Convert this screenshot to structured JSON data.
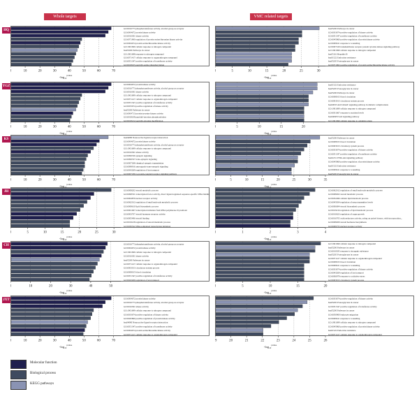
{
  "headers": {
    "left": "Whole targets",
    "right": "VMC related targets"
  },
  "colors": {
    "mf": "#1f1f4e",
    "bp": "#3f4a5f",
    "kegg": "#8a93b3",
    "tag": "#b0174f",
    "header": "#c8324a"
  },
  "legend": [
    {
      "label": "Molecular function",
      "color": "#1f1f4e"
    },
    {
      "label": "Biological process",
      "color": "#3f4a5f"
    },
    {
      "label": "KEGG pathways",
      "color": "#8a93b3"
    }
  ],
  "chart_data": [
    {
      "type": "bar",
      "herb": "HQ",
      "side": "Whole targets",
      "xlabel": "-log10 pvalue",
      "xlim": [
        0,
        75
      ],
      "xticks": [
        0,
        10,
        20,
        30,
        40,
        50,
        60,
        70
      ],
      "categories": [
        "GO:0016773 phosphotransferase activity, alcohol group as acceptor",
        "GO:0004672 protein kinase activity",
        "GO:0016301 kinase activity",
        "GO:0071900 regulation of protein serine/threonine kinase activity",
        "GO:0004674 protein serine/threonine kinase activity",
        "GO:1901699 cellular response to nitrogen compound",
        "hsa05200 Pathways in cancer",
        "GO:1901698 response to nitrogen compound",
        "GO:0071417 cellular response to organonitrogen compound",
        "GO:0051347 positive regulation of transferase activity",
        "GO:0018105 peptidyl-serine phosphorylation"
      ],
      "groups": [
        "mf",
        "mf",
        "mf",
        "bp",
        "mf",
        "bp",
        "kegg",
        "bp",
        "bp",
        "bp",
        "bp"
      ],
      "values": [
        68,
        66,
        64,
        48,
        47,
        46,
        45,
        44,
        43,
        42,
        41
      ]
    },
    {
      "type": "bar",
      "herb": "HQ",
      "side": "VMC related targets",
      "xlabel": "-log10 pvalue",
      "xlim": [
        0,
        32
      ],
      "xticks": [
        0,
        5,
        10,
        15,
        20,
        25,
        30
      ],
      "categories": [
        "hsa05200 Pathways in cancer",
        "GO:0033674 positive regulation of kinase activity",
        "GO:0051347 positive regulation of transferase activity",
        "GO:0045860 positive regulation of protein kinase activity",
        "GO:0009611 response to wounding",
        "GO:0007169 transmembrane receptor protein tyrosine kinase signaling pathway",
        "GO:1901699 cellular response to nitrogen compound",
        "hsa05161 Hepatitis B",
        "hsa01522 Endocrine resistance",
        "hsa05205 Proteoglycans in cancer",
        "GO:0071902 positive regulation of protein serine/threonine kinase activity"
      ],
      "groups": [
        "kegg",
        "bp",
        "bp",
        "bp",
        "bp",
        "bp",
        "bp",
        "kegg",
        "kegg",
        "kegg",
        "bp"
      ],
      "values": [
        30,
        25,
        25,
        24,
        24,
        23,
        23,
        22,
        22,
        22,
        21
      ]
    },
    {
      "type": "bar",
      "herb": "YGZ",
      "side": "Whole targets",
      "xlabel": "-log10 pvalue",
      "xlim": [
        0,
        75
      ],
      "xticks": [
        0,
        10,
        20,
        30,
        40,
        50,
        60,
        70
      ],
      "categories": [
        "GO:0004672 protein kinase activity",
        "GO:0016773 phosphotransferase activity, alcohol group as acceptor",
        "GO:0016301 kinase activity",
        "GO:1901699 cellular response to nitrogen compound",
        "GO:0071417 cellular response to organonitrogen compound",
        "GO:0051347 positive regulation of transferase activity",
        "GO:0033674 positive regulation of kinase activity",
        "hsa05200 Pathways in cancer",
        "GO:0004713 protein tyrosine kinase activity",
        "GO:0018108 peptidyl-tyrosine phosphorylation",
        "GO:0018212 peptidyl-tyrosine modification"
      ],
      "groups": [
        "mf",
        "mf",
        "mf",
        "bp",
        "bp",
        "bp",
        "bp",
        "kegg",
        "mf",
        "bp",
        "bp"
      ],
      "values": [
        68,
        66,
        64,
        48,
        47,
        46,
        45,
        44,
        42,
        41,
        40
      ]
    },
    {
      "type": "bar",
      "herb": "YGZ",
      "side": "VMC related targets",
      "xlabel": "-log10 pvalue",
      "xlim": [
        0,
        25
      ],
      "xticks": [
        0,
        5,
        10,
        15,
        20
      ],
      "categories": [
        "hsa01522 Endocrine resistance",
        "hsa05205 Proteoglycans in cancer",
        "hsa05200 Pathways in cancer",
        "GO:0008015 blood circulation",
        "GO:0003013 circulatory system process",
        "hsa04933 AGE-RAGE signaling pathway in diabetic complications",
        "GO:1901699 cellular response to nitrogen compound",
        "GO:0031667 response to nutrient levels",
        "hsa04068 FoxO signaling pathway",
        "GO:1901699 cellular response to oxidative stress"
      ],
      "groups": [
        "kegg",
        "kegg",
        "kegg",
        "bp",
        "bp",
        "kegg",
        "bp",
        "bp",
        "kegg",
        "bp"
      ],
      "values": [
        23,
        23,
        22,
        21,
        21,
        21,
        20,
        20,
        20,
        20
      ]
    },
    {
      "type": "bar",
      "herb": "KS",
      "side": "Whole targets",
      "xlabel": "-log10 pvalue",
      "xlim": [
        0,
        75
      ],
      "xticks": [
        0,
        10,
        20,
        30,
        40,
        50,
        60,
        70
      ],
      "categories": [
        "hsa04080 Neuroactive ligand-receptor interaction",
        "GO:0004672 protein kinase activity",
        "GO:0016773 phosphotransferase activity, alcohol group as acceptor",
        "GO:1901699 cellular response to nitrogen compound",
        "GO:0016301 kinase activity",
        "GO:0099536 synaptic signaling",
        "GO:0099537 trans-synaptic signaling",
        "GO:0007268 chemical synaptic transmission",
        "GO:0098916 anterograde trans-synaptic signaling",
        "GO:0043269 regulation of ion transport",
        "GO:0007186 G protein-coupled receptor signaling pathway"
      ],
      "groups": [
        "kegg",
        "mf",
        "mf",
        "bp",
        "mf",
        "bp",
        "bp",
        "bp",
        "bp",
        "bp",
        "bp"
      ],
      "values": [
        66,
        60,
        58,
        56,
        54,
        52,
        51,
        50,
        50,
        49,
        48
      ]
    },
    {
      "type": "bar",
      "herb": "KS",
      "side": "VMC related targets",
      "xlabel": "-log10 pvalue",
      "xlim": [
        0,
        35
      ],
      "xticks": [
        0,
        5,
        10,
        15,
        20,
        25,
        30,
        35
      ],
      "categories": [
        "hsa05200 Pathways in cancer",
        "GO:0008015 blood circulation",
        "GO:0003013 circulatory system process",
        "GO:0033674 positive regulation of kinase activity",
        "GO:0051347 positive regulation of transferase activity",
        "hsa04151 PI3K-Akt signaling pathway",
        "GO:0045860 positive regulation of protein kinase activity",
        "hsa01522 Endocrine resistance",
        "GO:0009611 response to wounding",
        "hsa05205 Proteoglycans in cancer"
      ],
      "groups": [
        "kegg",
        "bp",
        "bp",
        "bp",
        "bp",
        "kegg",
        "bp",
        "kegg",
        "bp",
        "kegg"
      ],
      "values": [
        33,
        30,
        29,
        28,
        27,
        26,
        26,
        25,
        24,
        24
      ]
    },
    {
      "type": "bar",
      "herb": "JH",
      "side": "Whole targets",
      "xlabel": "-log10 pvalue",
      "xlim": [
        0,
        32
      ],
      "xticks": [
        0,
        5,
        10,
        15,
        20,
        25,
        30
      ],
      "categories": [
        "GO:0008202 steroid metabolic process",
        "GO:0098531 transcription factor activity, direct ligand regulated sequence-specific DNA binding",
        "GO:0004879 nuclear receptor activity",
        "GO:0062012 regulation of small molecule metabolic process",
        "GO:0008610 lipid biosynthetic process",
        "GO:0001067 transcription initiation from RNA polymerase II promoter",
        "GO:0003707 steroid hormone receptor activity",
        "GO:0005496 steroid binding",
        "GO:0019218 regulation of steroid metabolic process",
        "GO:0030522 DNA-templated transcription initiation"
      ],
      "groups": [
        "bp",
        "mf",
        "mf",
        "bp",
        "bp",
        "bp",
        "mf",
        "mf",
        "bp",
        "bp"
      ],
      "values": [
        29,
        24,
        23,
        22,
        21,
        20,
        19,
        18,
        17,
        17
      ]
    },
    {
      "type": "bar",
      "herb": "JH",
      "side": "VMC related targets",
      "xlabel": "-log10 pvalue",
      "xlim": [
        0,
        4
      ],
      "xticks": [
        0,
        1,
        2,
        3,
        4
      ],
      "categories": [
        "GO:0062012 regulation of small molecule metabolic process",
        "GO:0008202 steroid metabolic process",
        "GO:0032496 cellular lipid metabolic process",
        "GO:0045834 regulation of neurotransmitter levels",
        "GO:0006694 steroid biosynthetic process",
        "GO:0019216 regulation of lipid metabolic process",
        "GO:0010623 regulation of organ growth",
        "GO:0016705 oxidoreductase activity, acting on paired donors, with incorporation...",
        "GO:0008209 steroid hormone biosynthesis",
        "GO:0009755 nuclear receptor activity"
      ],
      "groups": [
        "bp",
        "bp",
        "bp",
        "bp",
        "bp",
        "bp",
        "bp",
        "mf",
        "bp",
        "mf"
      ],
      "values": [
        3.6,
        3.4,
        3.2,
        3.1,
        3.0,
        2.9,
        2.8,
        2.8,
        2.7,
        2.7
      ]
    },
    {
      "type": "bar",
      "herb": "CH",
      "side": "Whole targets",
      "xlabel": "-log10 pvalue",
      "xlim": [
        0,
        55
      ],
      "xticks": [
        0,
        10,
        20,
        30,
        40,
        50
      ],
      "categories": [
        "GO:0016773 phosphotransferase activity, alcohol group as acceptor",
        "GO:0004672 protein kinase activity",
        "GO:1901699 cellular response to nitrogen compound",
        "GO:0016301 kinase activity",
        "hsa05200 Pathways in cancer",
        "GO:0071417 cellular response to organonitrogen compound",
        "GO:0003013 circulatory system process",
        "GO:0008015 blood circulation",
        "GO:0051347 positive regulation of transferase activity",
        "GO:0043269 regulation of ion transport"
      ],
      "groups": [
        "mf",
        "mf",
        "bp",
        "mf",
        "kegg",
        "bp",
        "bp",
        "bp",
        "bp",
        "bp"
      ],
      "values": [
        48,
        47,
        46,
        45,
        44,
        43,
        42,
        41,
        40,
        39
      ]
    },
    {
      "type": "bar",
      "herb": "CH",
      "side": "VMC related targets",
      "xlabel": "-log10 pvalue",
      "xlim": [
        0,
        20
      ],
      "xticks": [
        0,
        5,
        10,
        15,
        20
      ],
      "categories": [
        "GO:1901699 cellular response to nitrogen compound",
        "hsa05200 Pathways in cancer",
        "GO:0010035 response to inorganic substance",
        "hsa05205 Proteoglycans in cancer",
        "GO:0071417 cellular response to organonitrogen compound",
        "GO:0008015 blood circulation",
        "GO:0009611 response to wounding",
        "GO:0033674 positive regulation of kinase activity",
        "GO:0043269 regulation of ion transport",
        "GO:0006979 response to oxidative stress",
        "GO:0003013 circulatory system process"
      ],
      "groups": [
        "bp",
        "kegg",
        "bp",
        "kegg",
        "bp",
        "bp",
        "bp",
        "bp",
        "bp",
        "bp",
        "bp"
      ],
      "values": [
        19,
        18,
        18,
        17,
        17,
        17,
        16,
        16,
        16,
        16,
        16
      ]
    },
    {
      "type": "bar",
      "herb": "JXT",
      "side": "Whole targets",
      "xlabel": "-log10 pvalue",
      "xlim": [
        0,
        75
      ],
      "xticks": [
        0,
        10,
        20,
        30,
        40,
        50,
        60,
        70
      ],
      "categories": [
        "GO:0004672 protein kinase activity",
        "GO:0016773 phosphotransferase activity, alcohol group as acceptor",
        "GO:0016301 kinase activity",
        "GO:1901699 cellular response to nitrogen compound",
        "GO:0033674 positive regulation of kinase activity",
        "GO:0045860 positive regulation of protein kinase activity",
        "hsa04080 Neuroactive ligand-receptor interaction",
        "GO:0051347 positive regulation of transferase activity",
        "GO:0004674 protein serine/threonine kinase activity",
        "GO:0071417 cellular response to organonitrogen compound"
      ],
      "groups": [
        "mf",
        "mf",
        "mf",
        "bp",
        "bp",
        "bp",
        "kegg",
        "bp",
        "mf",
        "bp"
      ],
      "values": [
        68,
        64,
        62,
        56,
        55,
        54,
        52,
        51,
        50,
        49
      ]
    },
    {
      "type": "bar",
      "herb": "JXT",
      "side": "VMC related targets",
      "xlabel": "-log10 pvalue",
      "xlim": [
        19,
        26
      ],
      "xticks": [
        19,
        20,
        21,
        22,
        23,
        24,
        25,
        26
      ],
      "categories": [
        "GO:0033674 positive regulation of kinase activity",
        "hsa05205 Proteoglycans in cancer",
        "GO:0051347 positive regulation of transferase activity",
        "hsa05200 Pathways in cancer",
        "GO:0050900 leukocyte migration",
        "GO:0009611 response to wounding",
        "GO:1901699 cellular response to nitrogen compound",
        "GO:0045860 positive regulation of protein kinase activity",
        "hsa01522 Endocrine resistance",
        "GO:0071417 cellular response to organonitrogen compound"
      ],
      "groups": [
        "bp",
        "kegg",
        "bp",
        "kegg",
        "bp",
        "bp",
        "bp",
        "bp",
        "kegg",
        "bp"
      ],
      "values": [
        25.2,
        24.8,
        24.5,
        24.2,
        24.0,
        23.5,
        23.0,
        22.5,
        22.0,
        22.0
      ]
    }
  ]
}
